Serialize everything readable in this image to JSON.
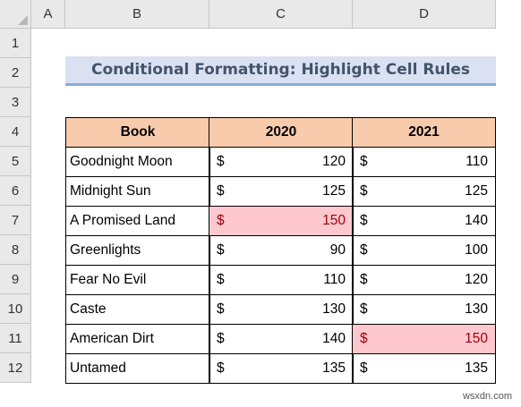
{
  "columns": [
    "A",
    "B",
    "C",
    "D"
  ],
  "rows": [
    "1",
    "2",
    "3",
    "4",
    "5",
    "6",
    "7",
    "8",
    "9",
    "10",
    "11",
    "12"
  ],
  "title": "Conditional Formatting: Highlight Cell Rules",
  "table": {
    "headers": [
      "Book",
      "2020",
      "2021"
    ],
    "currency": "$",
    "rows": [
      {
        "book": "Goodnight Moon",
        "y2020": "120",
        "y2021": "110"
      },
      {
        "book": "Midnight Sun",
        "y2020": "125",
        "y2021": "125"
      },
      {
        "book": "A Promised Land",
        "y2020": "150",
        "y2021": "140"
      },
      {
        "book": "Greenlights",
        "y2020": "90",
        "y2021": "100"
      },
      {
        "book": "Fear No Evil",
        "y2020": "110",
        "y2021": "120"
      },
      {
        "book": "Caste",
        "y2020": "130",
        "y2021": "130"
      },
      {
        "book": "American Dirt",
        "y2020": "140",
        "y2021": "150"
      },
      {
        "book": "Untamed",
        "y2020": "135",
        "y2021": "135"
      }
    ]
  },
  "highlight_colors": {
    "fill": "#ffc7ce",
    "text": "#9c0006"
  },
  "watermark": "wsxdn.com"
}
